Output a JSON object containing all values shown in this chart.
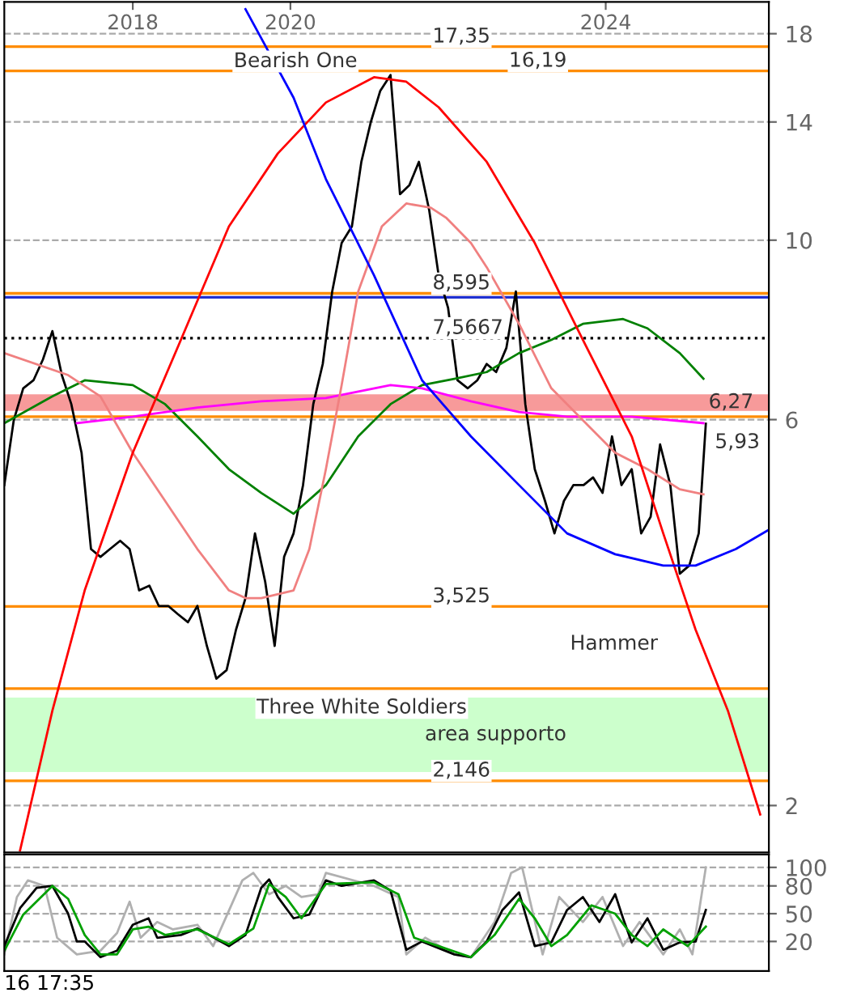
{
  "chart_data": [
    {
      "type": "line",
      "log": "y",
      "grid": "y",
      "xlim": [
        2016.37,
        2026.07
      ],
      "xticks": [
        2018,
        2020,
        2024
      ],
      "ylim": [
        1.75,
        19.7
      ],
      "yticks": [
        2,
        6,
        10,
        14,
        18
      ],
      "x": [
        2016.37,
        2016.49,
        2016.61,
        2016.74,
        2016.86,
        2016.98,
        2017.1,
        2017.22,
        2017.35,
        2017.47,
        2017.59,
        2017.71,
        2017.84,
        2017.96,
        2018.08,
        2018.21,
        2018.33,
        2018.45,
        2018.57,
        2018.7,
        2018.82,
        2018.94,
        2019.06,
        2019.19,
        2019.31,
        2019.43,
        2019.55,
        2019.68,
        2019.8,
        2019.92,
        2020.04,
        2020.16,
        2020.29,
        2020.41,
        2020.53,
        2020.65,
        2020.78,
        2020.9,
        2021.02,
        2021.14,
        2021.27,
        2021.39,
        2021.51,
        2021.63,
        2021.76,
        2021.88,
        2022.0,
        2022.12,
        2022.25,
        2022.37,
        2022.49,
        2022.61,
        2022.74,
        2022.86,
        2022.98,
        2023.1,
        2023.23,
        2023.35,
        2023.47,
        2023.59,
        2023.72,
        2023.84,
        2023.96,
        2024.08,
        2024.2,
        2024.33,
        2024.45,
        2024.57,
        2024.69,
        2024.82,
        2024.94,
        2025.06,
        2025.18,
        2025.27
      ],
      "series": [
        {
          "color": "#000000",
          "values": [
            4.98,
            5.99,
            6.56,
            6.71,
            7.12,
            7.72,
            6.81,
            6.27,
            5.46,
            4.15,
            4.06,
            4.15,
            4.25,
            4.15,
            3.69,
            3.74,
            3.53,
            3.53,
            3.45,
            3.37,
            3.53,
            3.15,
            2.87,
            2.94,
            3.3,
            3.61,
            4.34,
            3.78,
            3.15,
            4.06,
            4.34,
            4.98,
            6.27,
            7.03,
            8.64,
            9.92,
            10.4,
            12.5,
            14.0,
            15.3,
            16.0,
            11.4,
            11.7,
            12.5,
            10.9,
            9.05,
            8.25,
            6.71,
            6.56,
            6.71,
            7.03,
            6.87,
            7.36,
            8.64,
            6.27,
            5.21,
            4.76,
            4.34,
            4.76,
            4.98,
            4.98,
            5.09,
            4.87,
            5.72,
            4.98,
            5.21,
            4.34,
            4.55,
            5.59,
            4.98,
            3.87,
            3.96,
            4.34,
            5.93
          ]
        },
        {
          "color": "#008000",
          "x": [
            2016.37,
            2016.98,
            2017.39,
            2018.0,
            2018.41,
            2018.82,
            2019.22,
            2019.63,
            2020.04,
            2020.45,
            2020.86,
            2021.27,
            2021.67,
            2022.08,
            2022.49,
            2022.9,
            2023.31,
            2023.71,
            2024.22,
            2024.53,
            2024.94,
            2025.24
          ],
          "values": [
            5.94,
            6.41,
            6.71,
            6.62,
            6.27,
            5.72,
            5.21,
            4.87,
            4.59,
            4.98,
            5.72,
            6.27,
            6.62,
            6.74,
            6.87,
            7.25,
            7.53,
            7.88,
            7.99,
            7.78,
            7.25,
            6.74
          ]
        },
        {
          "color": "#ff00ff",
          "x": [
            2017.29,
            2018.0,
            2018.82,
            2019.63,
            2020.45,
            2021.27,
            2021.67,
            2022.29,
            2022.9,
            2023.51,
            2024.33,
            2025.24
          ],
          "values": [
            5.94,
            6.05,
            6.21,
            6.32,
            6.38,
            6.62,
            6.56,
            6.32,
            6.13,
            6.05,
            6.05,
            5.94
          ]
        },
        {
          "color": "#f08080",
          "x": [
            2016.37,
            2017.18,
            2017.59,
            2018.0,
            2018.41,
            2018.82,
            2019.22,
            2019.43,
            2019.63,
            2020.04,
            2020.24,
            2020.45,
            2020.65,
            2020.86,
            2021.16,
            2021.47,
            2021.78,
            2021.98,
            2022.29,
            2022.49,
            2022.9,
            2023.31,
            2023.71,
            2024.12,
            2024.53,
            2024.94,
            2025.24
          ],
          "values": [
            7.25,
            6.81,
            6.41,
            5.46,
            4.76,
            4.15,
            3.69,
            3.61,
            3.61,
            3.69,
            4.15,
            5.21,
            6.62,
            8.64,
            10.4,
            11.1,
            10.97,
            10.65,
            9.92,
            9.26,
            7.88,
            6.56,
            5.99,
            5.46,
            5.21,
            4.92,
            4.85
          ]
        },
        {
          "color": "#ff0000",
          "x": [
            2016.57,
            2016.98,
            2017.39,
            2018.0,
            2018.61,
            2019.22,
            2019.84,
            2020.45,
            2021.06,
            2021.47,
            2021.88,
            2022.49,
            2023.1,
            2023.71,
            2024.33,
            2024.73,
            2025.14,
            2025.55,
            2025.96
          ],
          "values": [
            1.76,
            2.62,
            3.69,
            5.46,
            7.53,
            10.4,
            12.8,
            14.8,
            15.9,
            15.7,
            14.6,
            12.5,
            9.92,
            7.53,
            5.72,
            4.34,
            3.3,
            2.62,
            1.95
          ]
        },
        {
          "color": "#0000ff",
          "x": [
            2019.43,
            2020.04,
            2020.45,
            2021.06,
            2021.67,
            2022.29,
            2022.9,
            2023.51,
            2024.12,
            2024.73,
            2025.14,
            2025.65,
            2026.06
          ],
          "values": [
            19.3,
            15.0,
            11.9,
            9.05,
            6.71,
            5.72,
            4.98,
            4.34,
            4.09,
            3.96,
            3.96,
            4.15,
            4.38
          ]
        }
      ],
      "ref_lines": [
        {
          "axis": "y",
          "value": 17.35,
          "label": "17,35",
          "color": "#ff8c00"
        },
        {
          "axis": "y",
          "value": 16.19,
          "label": "16,19",
          "color": "#ff8c00"
        },
        {
          "axis": "y",
          "value": 8.595,
          "label": "8,595",
          "color": "#ff8c00"
        },
        {
          "axis": "y",
          "value": 8.5,
          "color": "#2030d0"
        },
        {
          "axis": "y",
          "value": 7.5667,
          "label": "7,5667",
          "color": "#000000",
          "line_style": "dotted"
        },
        {
          "axis": "y",
          "value": 6.05,
          "color": "#ff8c00"
        },
        {
          "axis": "y",
          "value": 3.525,
          "label": "3,525",
          "color": "#ff8c00"
        },
        {
          "axis": "y",
          "value": 2.79,
          "color": "#ff8c00"
        },
        {
          "axis": "y",
          "value": 2.146,
          "label": "2,146",
          "color": "#ff8c00"
        }
      ],
      "bands": [
        {
          "axis": "y",
          "from": 6.15,
          "to": 6.45,
          "label": "6,27",
          "color": "#f79a9a"
        },
        {
          "axis": "y",
          "from": 2.2,
          "to": 2.72,
          "label": "area supporto",
          "color": "#ccffcc"
        }
      ],
      "annotations": [
        "Bearish One",
        "Three White Soldiers",
        "Hammer",
        {
          "text": "5,93",
          "x": 2025.27,
          "y": 5.93
        },
        "16 17:35"
      ]
    },
    {
      "type": "line",
      "grid": "y",
      "tick_labels": "y",
      "xlim": [
        2016.37,
        2026.07
      ],
      "ylim": [
        -12,
        114
      ],
      "yticks": [
        20,
        50,
        80,
        100
      ],
      "series": [
        {
          "color": "#b0b0b0",
          "x": [
            2016.37,
            2016.53,
            2016.67,
            2016.88,
            2017.04,
            2017.29,
            2017.59,
            2017.8,
            2017.96,
            2018.1,
            2018.31,
            2018.51,
            2018.82,
            2019.02,
            2019.39,
            2019.53,
            2019.73,
            2019.94,
            2020.14,
            2020.35,
            2020.45,
            2021.06,
            2021.37,
            2021.47,
            2021.71,
            2022.08,
            2022.29,
            2022.59,
            2022.8,
            2022.94,
            2023.2,
            2023.41,
            2023.71,
            2023.96,
            2024.22,
            2024.43,
            2024.73,
            2024.94,
            2025.1,
            2025.27
          ],
          "values": [
            6,
            68,
            86,
            80,
            24,
            6,
            10,
            29,
            63,
            24,
            41,
            33,
            38,
            15,
            86,
            94,
            71,
            80,
            68,
            71,
            94,
            80,
            68,
            6,
            24,
            6,
            3,
            41,
            94,
            100,
            6,
            68,
            41,
            68,
            15,
            41,
            6,
            33,
            6,
            100
          ]
        },
        {
          "color": "#000000",
          "x": [
            2016.37,
            2016.57,
            2016.78,
            2016.98,
            2017.18,
            2017.29,
            2017.39,
            2017.59,
            2017.8,
            2018.0,
            2018.2,
            2018.31,
            2018.61,
            2018.82,
            2019.22,
            2019.43,
            2019.63,
            2019.73,
            2019.84,
            2020.04,
            2020.24,
            2020.45,
            2020.65,
            2021.06,
            2021.27,
            2021.47,
            2021.67,
            2022.08,
            2022.29,
            2022.49,
            2022.69,
            2022.9,
            2023.1,
            2023.31,
            2023.51,
            2023.71,
            2023.92,
            2024.12,
            2024.22,
            2024.33,
            2024.53,
            2024.73,
            2024.94,
            2025.14,
            2025.27
          ],
          "values": [
            15,
            56,
            78,
            80,
            50,
            20,
            20,
            3,
            10,
            38,
            45,
            24,
            27,
            34,
            15,
            27,
            78,
            87,
            68,
            45,
            49,
            86,
            80,
            86,
            75,
            11,
            20,
            6,
            3,
            20,
            54,
            73,
            15,
            19,
            54,
            68,
            41,
            71,
            45,
            19,
            45,
            11,
            19,
            20,
            54
          ]
        },
        {
          "color": "#00a000",
          "x": [
            2016.37,
            2016.61,
            2016.98,
            2017.18,
            2017.39,
            2017.59,
            2017.8,
            2018.0,
            2018.2,
            2018.41,
            2018.82,
            2019.22,
            2019.53,
            2019.73,
            2019.94,
            2020.14,
            2020.45,
            2021.06,
            2021.37,
            2021.57,
            2021.88,
            2022.29,
            2022.59,
            2022.9,
            2023.1,
            2023.31,
            2023.51,
            2023.82,
            2024.12,
            2024.33,
            2024.53,
            2024.73,
            2025.04,
            2025.27
          ],
          "values": [
            10,
            49,
            80,
            66,
            27,
            6,
            6,
            33,
            36,
            27,
            33,
            17,
            34,
            82,
            68,
            45,
            82,
            84,
            71,
            24,
            15,
            3,
            27,
            66,
            45,
            15,
            27,
            59,
            50,
            27,
            15,
            33,
            15,
            36
          ]
        }
      ]
    }
  ]
}
